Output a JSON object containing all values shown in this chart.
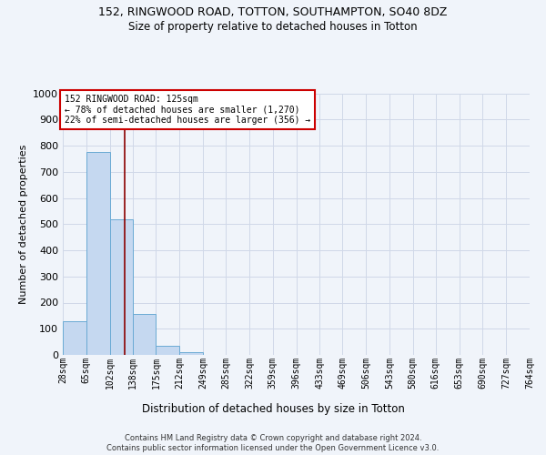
{
  "title1": "152, RINGWOOD ROAD, TOTTON, SOUTHAMPTON, SO40 8DZ",
  "title2": "Size of property relative to detached houses in Totton",
  "xlabel": "Distribution of detached houses by size in Totton",
  "ylabel": "Number of detached properties",
  "bar_values": [
    130,
    775,
    520,
    155,
    35,
    10,
    0,
    0,
    0,
    0,
    0,
    0,
    0,
    0,
    0,
    0,
    0,
    0,
    0,
    0
  ],
  "bin_edges": [
    28,
    65,
    102,
    138,
    175,
    212,
    249,
    285,
    322,
    359,
    396,
    433,
    469,
    506,
    543,
    580,
    616,
    653,
    690,
    727,
    764
  ],
  "bar_color": "#c5d8f0",
  "bar_edge_color": "#6aaad4",
  "grid_color": "#d0d8e8",
  "reference_line_x": 125,
  "reference_line_color": "#8b0000",
  "annotation_text": "152 RINGWOOD ROAD: 125sqm\n← 78% of detached houses are smaller (1,270)\n22% of semi-detached houses are larger (356) →",
  "annotation_box_color": "#ffffff",
  "annotation_box_edge_color": "#cc0000",
  "ylim": [
    0,
    1000
  ],
  "yticks": [
    0,
    100,
    200,
    300,
    400,
    500,
    600,
    700,
    800,
    900,
    1000
  ],
  "footer_text": "Contains HM Land Registry data © Crown copyright and database right 2024.\nContains public sector information licensed under the Open Government Licence v3.0.",
  "background_color": "#f0f4fa",
  "title_fontsize": 9,
  "subtitle_fontsize": 8.5,
  "xlabel_fontsize": 8.5,
  "ylabel_fontsize": 8,
  "tick_fontsize": 7,
  "footer_fontsize": 6,
  "annotation_fontsize": 7
}
